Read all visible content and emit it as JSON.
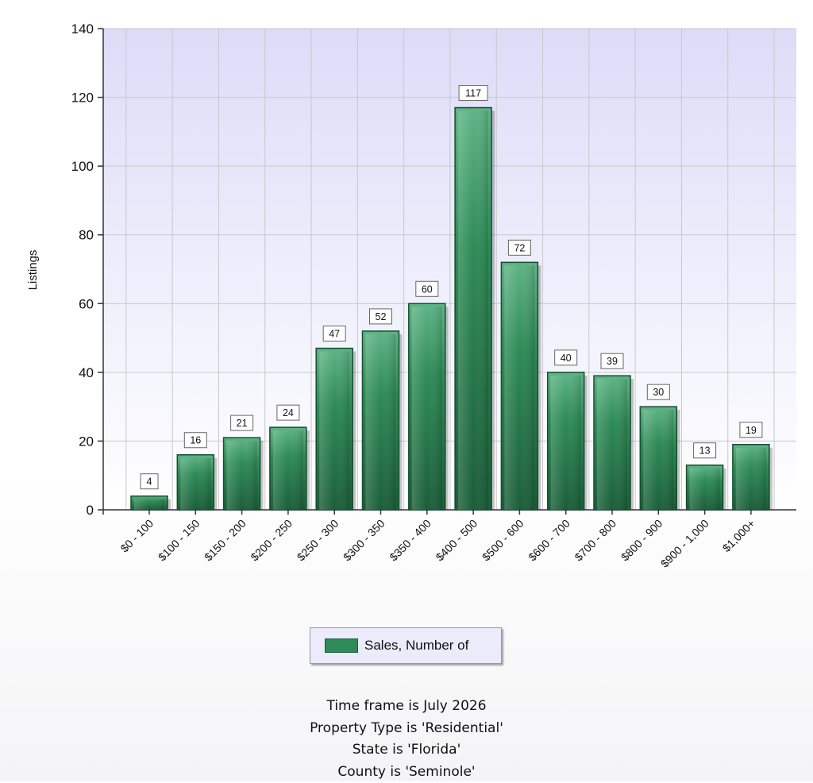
{
  "chart_data": {
    "type": "bar",
    "categories": [
      "$0 - 100",
      "$100 - 150",
      "$150 - 200",
      "$200 - 250",
      "$250 - 300",
      "$300 - 350",
      "$350 - 400",
      "$400 - 500",
      "$500 - 600",
      "$600 - 700",
      "$700 - 800",
      "$800 - 900",
      "$900 - 1,000",
      "$1,000+"
    ],
    "series": [
      {
        "name": "Sales, Number of",
        "values": [
          4,
          16,
          21,
          24,
          47,
          52,
          60,
          117,
          72,
          40,
          39,
          30,
          13,
          19
        ]
      }
    ],
    "ylabel": "Listings",
    "ylim": [
      0,
      140
    ],
    "yticks": [
      0,
      20,
      40,
      60,
      80,
      100,
      120,
      140
    ],
    "grid": true,
    "legend_position": "bottom-center",
    "colors": {
      "bar": "#2e8b57",
      "bar_dark": "#1f6b40",
      "plot_bg_top": "#dcdcf8",
      "plot_bg_bottom": "#ffffff"
    }
  },
  "footer": {
    "lines": [
      "Time frame is July 2026",
      "Property Type is 'Residential'",
      "State is 'Florida'",
      "County is 'Seminole'"
    ]
  }
}
